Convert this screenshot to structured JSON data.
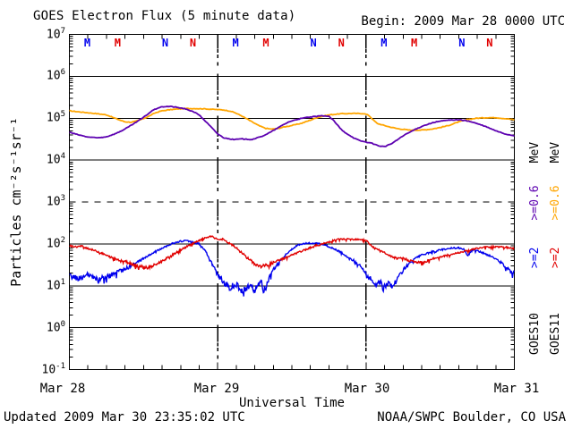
{
  "header": {
    "title": "GOES Electron Flux (5 minute data)",
    "begin": "Begin: 2009 Mar 28 0000 UTC"
  },
  "footer": {
    "updated": "Updated 2009 Mar 30 23:35:02 UTC",
    "source": "NOAA/SWPC Boulder, CO USA"
  },
  "axes": {
    "x_title": "Universal Time",
    "y_title": "Particles cm⁻²s⁻¹sr⁻¹",
    "x_ticks": [
      "Mar 28",
      "Mar 29",
      "Mar 30",
      "Mar 31"
    ],
    "y_exponents": [
      7,
      6,
      5,
      4,
      3,
      2,
      1,
      0,
      -1
    ]
  },
  "legend": {
    "columns": [
      {
        "satellite": "GOES10",
        "e2_label": ">=2",
        "e06_label": ">=0.6",
        "mev_label": "MeV",
        "e2_color": "#0000ee",
        "e06_color": "#5c00b0",
        "text_color": "#000000"
      },
      {
        "satellite": "GOES11",
        "e2_label": ">=2",
        "e06_label": ">=0.6",
        "mev_label": "MeV",
        "e2_color": "#e10000",
        "e06_color": "#ffa500",
        "text_color": "#000000"
      }
    ]
  },
  "chart_data": {
    "type": "line",
    "title": "GOES Electron Flux (5 minute data)",
    "xlabel": "Universal Time",
    "ylabel": "Particles cm⁻²s⁻¹sr⁻¹",
    "x_unit": "hours since 2009 Mar 28 0000 UTC",
    "xlim": [
      0,
      72
    ],
    "ylim": [
      0.1,
      10000000
    ],
    "y_scale": "log",
    "x_tick_labels": [
      "Mar 28",
      "Mar 29",
      "Mar 30",
      "Mar 31"
    ],
    "gridlines": {
      "solid_at": [
        1,
        10,
        100,
        10000,
        100000,
        1000000
      ],
      "dashed_at": [
        1000
      ],
      "vertical_dotted_at_hours": [
        24,
        48
      ]
    },
    "markers": {
      "note": "satellite local midnight (M) / noon (N) letters along plot top",
      "letters": [
        {
          "hour": 2.9,
          "label": "M",
          "color": "#0000ee"
        },
        {
          "hour": 7.8,
          "label": "M",
          "color": "#e10000"
        },
        {
          "hour": 15.5,
          "label": "N",
          "color": "#0000ee"
        },
        {
          "hour": 20.0,
          "label": "N",
          "color": "#e10000"
        },
        {
          "hour": 26.9,
          "label": "M",
          "color": "#0000ee"
        },
        {
          "hour": 31.8,
          "label": "M",
          "color": "#e10000"
        },
        {
          "hour": 39.5,
          "label": "N",
          "color": "#0000ee"
        },
        {
          "hour": 44.0,
          "label": "N",
          "color": "#e10000"
        },
        {
          "hour": 50.9,
          "label": "M",
          "color": "#0000ee"
        },
        {
          "hour": 55.8,
          "label": "M",
          "color": "#e10000"
        },
        {
          "hour": 63.5,
          "label": "N",
          "color": "#0000ee"
        },
        {
          "hour": 68.0,
          "label": "N",
          "color": "#e10000"
        }
      ]
    },
    "series": [
      {
        "name": "GOES11 >=0.6 MeV",
        "satellite": "GOES11",
        "energy": ">=0.6 MeV",
        "color": "#ffa500",
        "noise": "low",
        "width": 1.8,
        "points": [
          [
            0,
            150000
          ],
          [
            1.5,
            142000
          ],
          [
            3,
            135000
          ],
          [
            4.5,
            128000
          ],
          [
            6,
            120000
          ],
          [
            7,
            105000
          ],
          [
            8,
            92000
          ],
          [
            9,
            82000
          ],
          [
            10,
            80000
          ],
          [
            10.8,
            85000
          ],
          [
            11.8,
            95000
          ],
          [
            12.8,
            110000
          ],
          [
            13.8,
            132000
          ],
          [
            14.8,
            148000
          ],
          [
            16,
            158000
          ],
          [
            17.5,
            166000
          ],
          [
            19,
            170000
          ],
          [
            20.5,
            170000
          ],
          [
            22,
            167000
          ],
          [
            23.5,
            162000
          ],
          [
            25,
            157000
          ],
          [
            26,
            148000
          ],
          [
            26.8,
            135000
          ],
          [
            27.8,
            115000
          ],
          [
            28.8,
            95000
          ],
          [
            29.8,
            78000
          ],
          [
            30.8,
            65000
          ],
          [
            31.8,
            57000
          ],
          [
            32.8,
            55000
          ],
          [
            33.8,
            57000
          ],
          [
            34.8,
            62000
          ],
          [
            36.2,
            68000
          ],
          [
            37.6,
            76000
          ],
          [
            39,
            90000
          ],
          [
            40.2,
            105000
          ],
          [
            42,
            120000
          ],
          [
            44,
            128000
          ],
          [
            46,
            130000
          ],
          [
            47.6,
            129000
          ],
          [
            48.4,
            118000
          ],
          [
            49.1,
            93000
          ],
          [
            49.8,
            75000
          ],
          [
            50.8,
            68000
          ],
          [
            51.8,
            62000
          ],
          [
            53.2,
            56000
          ],
          [
            55,
            52000
          ],
          [
            57,
            52000
          ],
          [
            58.6,
            55000
          ],
          [
            60,
            60000
          ],
          [
            61.5,
            68000
          ],
          [
            63,
            82000
          ],
          [
            64.5,
            94000
          ],
          [
            66,
            100000
          ],
          [
            67.5,
            103000
          ],
          [
            69,
            103000
          ],
          [
            70.5,
            98000
          ],
          [
            72,
            92000
          ]
        ]
      },
      {
        "name": "GOES10 >=0.6 MeV",
        "satellite": "GOES10",
        "energy": ">=0.6 MeV",
        "color": "#5c00b0",
        "noise": "low",
        "width": 1.8,
        "points": [
          [
            0,
            46000
          ],
          [
            1.5,
            40000
          ],
          [
            3,
            35500
          ],
          [
            4.5,
            34000
          ],
          [
            6,
            36000
          ],
          [
            7.5,
            43000
          ],
          [
            9,
            55000
          ],
          [
            10.5,
            75000
          ],
          [
            12,
            105000
          ],
          [
            13.5,
            155000
          ],
          [
            14.5,
            180000
          ],
          [
            15.5,
            190000
          ],
          [
            16.5,
            190000
          ],
          [
            17.5,
            180000
          ],
          [
            18.5,
            170000
          ],
          [
            20,
            145000
          ],
          [
            21,
            120000
          ],
          [
            22,
            85000
          ],
          [
            23,
            60000
          ],
          [
            24,
            42000
          ],
          [
            25,
            34000
          ],
          [
            26.5,
            31000
          ],
          [
            28,
            32000
          ],
          [
            29.5,
            31000
          ],
          [
            31,
            36000
          ],
          [
            32.5,
            46000
          ],
          [
            34,
            62000
          ],
          [
            35.5,
            82000
          ],
          [
            37,
            95000
          ],
          [
            38.5,
            105000
          ],
          [
            40,
            110000
          ],
          [
            41,
            115000
          ],
          [
            42,
            110000
          ],
          [
            42.7,
            90000
          ],
          [
            43.5,
            65000
          ],
          [
            44.2,
            50000
          ],
          [
            45,
            42000
          ],
          [
            46,
            34000
          ],
          [
            47,
            29000
          ],
          [
            48,
            27000
          ],
          [
            49,
            25000
          ],
          [
            50,
            22000
          ],
          [
            51,
            21000
          ],
          [
            52,
            24000
          ],
          [
            53,
            30000
          ],
          [
            54,
            38000
          ],
          [
            55.5,
            50000
          ],
          [
            57,
            64000
          ],
          [
            58.5,
            76000
          ],
          [
            60,
            85000
          ],
          [
            61.5,
            90000
          ],
          [
            63,
            92000
          ],
          [
            64.5,
            86000
          ],
          [
            66,
            74000
          ],
          [
            67.5,
            62000
          ],
          [
            69,
            50000
          ],
          [
            70.5,
            42000
          ],
          [
            72,
            38000
          ]
        ]
      },
      {
        "name": "GOES10 >=2 MeV",
        "satellite": "GOES10",
        "energy": ">=2 MeV",
        "color": "#0000ee",
        "noise": "high",
        "width": 1.4,
        "points": [
          [
            0,
            17
          ],
          [
            1.5,
            15
          ],
          [
            3,
            18
          ],
          [
            4.5,
            14
          ],
          [
            6,
            16
          ],
          [
            7.5,
            20
          ],
          [
            9,
            25
          ],
          [
            10.5,
            33
          ],
          [
            12,
            45
          ],
          [
            13.5,
            60
          ],
          [
            15,
            80
          ],
          [
            16.5,
            100
          ],
          [
            18,
            115
          ],
          [
            19,
            120
          ],
          [
            20,
            110
          ],
          [
            21,
            100
          ],
          [
            22,
            70
          ],
          [
            22.8,
            40
          ],
          [
            23.5,
            25
          ],
          [
            24.3,
            16
          ],
          [
            25,
            12
          ],
          [
            26,
            9
          ],
          [
            27,
            11
          ],
          [
            28,
            7
          ],
          [
            29,
            10
          ],
          [
            30,
            8
          ],
          [
            31,
            12
          ],
          [
            31.8,
            9
          ],
          [
            32.5,
            18
          ],
          [
            33.2,
            26
          ],
          [
            34,
            38
          ],
          [
            35,
            55
          ],
          [
            36,
            75
          ],
          [
            36.8,
            90
          ],
          [
            37.5,
            98
          ],
          [
            38.3,
            103
          ],
          [
            39.2,
            105
          ],
          [
            40,
            102
          ],
          [
            41,
            96
          ],
          [
            42,
            86
          ],
          [
            43,
            74
          ],
          [
            44,
            62
          ],
          [
            45,
            50
          ],
          [
            46,
            40
          ],
          [
            46.8,
            32
          ],
          [
            47.5,
            24
          ],
          [
            48.2,
            18
          ],
          [
            48.8,
            14
          ],
          [
            49.5,
            11
          ],
          [
            50.2,
            13
          ],
          [
            50.8,
            8.5
          ],
          [
            51.5,
            12
          ],
          [
            52.2,
            9.5
          ],
          [
            53,
            14
          ],
          [
            54,
            24
          ],
          [
            55,
            34
          ],
          [
            56,
            45
          ],
          [
            57,
            54
          ],
          [
            58,
            60
          ],
          [
            59,
            66
          ],
          [
            60,
            72
          ],
          [
            61,
            76
          ],
          [
            62,
            80
          ],
          [
            63,
            80
          ],
          [
            63.8,
            76
          ],
          [
            64.5,
            52
          ],
          [
            65.2,
            74
          ],
          [
            66,
            68
          ],
          [
            67,
            60
          ],
          [
            68,
            52
          ],
          [
            69,
            44
          ],
          [
            70,
            34
          ],
          [
            71,
            26
          ],
          [
            71.6,
            20
          ],
          [
            72,
            23
          ]
        ]
      },
      {
        "name": "GOES11 >=2 MeV",
        "satellite": "GOES11",
        "energy": ">=2 MeV",
        "color": "#e10000",
        "noise": "high",
        "width": 1.4,
        "points": [
          [
            0,
            90
          ],
          [
            1,
            85
          ],
          [
            2,
            88
          ],
          [
            3,
            78
          ],
          [
            4,
            70
          ],
          [
            5,
            62
          ],
          [
            6,
            53
          ],
          [
            7,
            46
          ],
          [
            8,
            42
          ],
          [
            9,
            38
          ],
          [
            10,
            34
          ],
          [
            11,
            30
          ],
          [
            12,
            28
          ],
          [
            12.8,
            27
          ],
          [
            13.6,
            30
          ],
          [
            14.6,
            36
          ],
          [
            15.6,
            44
          ],
          [
            16.6,
            54
          ],
          [
            17.6,
            66
          ],
          [
            18.6,
            80
          ],
          [
            19.6,
            96
          ],
          [
            20.6,
            112
          ],
          [
            21.6,
            130
          ],
          [
            22.4,
            145
          ],
          [
            23,
            150
          ],
          [
            23.7,
            135
          ],
          [
            24.2,
            125
          ],
          [
            24.8,
            130
          ],
          [
            25.5,
            110
          ],
          [
            26.3,
            95
          ],
          [
            27,
            80
          ],
          [
            28,
            60
          ],
          [
            29,
            44
          ],
          [
            30,
            33
          ],
          [
            30.8,
            29
          ],
          [
            31.5,
            30
          ],
          [
            32.5,
            33
          ],
          [
            33.5,
            38
          ],
          [
            34.5,
            44
          ],
          [
            35.5,
            50
          ],
          [
            36.5,
            58
          ],
          [
            37.5,
            66
          ],
          [
            38.5,
            76
          ],
          [
            39.5,
            88
          ],
          [
            40.5,
            95
          ],
          [
            41.5,
            105
          ],
          [
            42.5,
            118
          ],
          [
            43.5,
            128
          ],
          [
            44.5,
            130
          ],
          [
            45.5,
            128
          ],
          [
            46.5,
            130
          ],
          [
            47.5,
            128
          ],
          [
            48.2,
            115
          ],
          [
            48.8,
            92
          ],
          [
            49.4,
            78
          ],
          [
            50,
            72
          ],
          [
            50.8,
            64
          ],
          [
            51.6,
            54
          ],
          [
            52.4,
            48
          ],
          [
            53.2,
            44
          ],
          [
            54,
            46
          ],
          [
            54.8,
            41
          ],
          [
            55.6,
            38
          ],
          [
            56.4,
            36
          ],
          [
            57.2,
            35
          ],
          [
            58,
            40
          ],
          [
            59,
            45
          ],
          [
            60,
            49
          ],
          [
            61.5,
            55
          ],
          [
            63,
            62
          ],
          [
            64.5,
            70
          ],
          [
            66,
            78
          ],
          [
            67.5,
            84
          ],
          [
            69,
            86
          ],
          [
            70.5,
            83
          ],
          [
            72,
            78
          ]
        ]
      }
    ]
  }
}
